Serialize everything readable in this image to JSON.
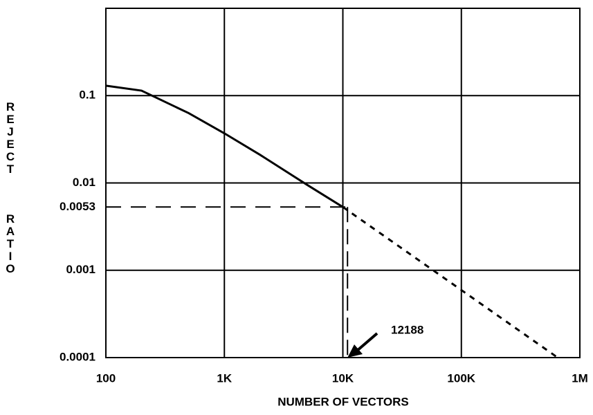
{
  "chart_data": {
    "type": "line",
    "xlabel": "NUMBER OF VECTORS",
    "ylabel": "REJECT RATIO",
    "xscale": "log",
    "yscale": "log",
    "xlim": [
      100,
      1000000
    ],
    "ylim": [
      0.0001,
      1
    ],
    "xticks": [
      100,
      {
        "value": 1000,
        "label": "1K"
      },
      {
        "value": 10000,
        "label": "10K"
      },
      {
        "value": 100000,
        "label": "100K"
      },
      {
        "value": 1000000,
        "label": "1M"
      }
    ],
    "yticks": [
      0.0001,
      0.001,
      0.0053,
      0.01,
      0.1
    ],
    "grid": true,
    "series": [
      {
        "color": "#000000",
        "style": "solid",
        "x": [
          100,
          200,
          500,
          1000,
          2000,
          5000,
          10000
        ],
        "values": [
          0.13,
          0.114,
          0.063,
          0.037,
          0.021,
          0.0095,
          0.0053
        ]
      },
      {
        "color": "#000000",
        "style": "dashed",
        "x": [
          10000,
          650000
        ],
        "values": [
          0.0053,
          0.0001
        ]
      }
    ],
    "reference": {
      "x": 12188,
      "y": 0.0053
    }
  }
}
